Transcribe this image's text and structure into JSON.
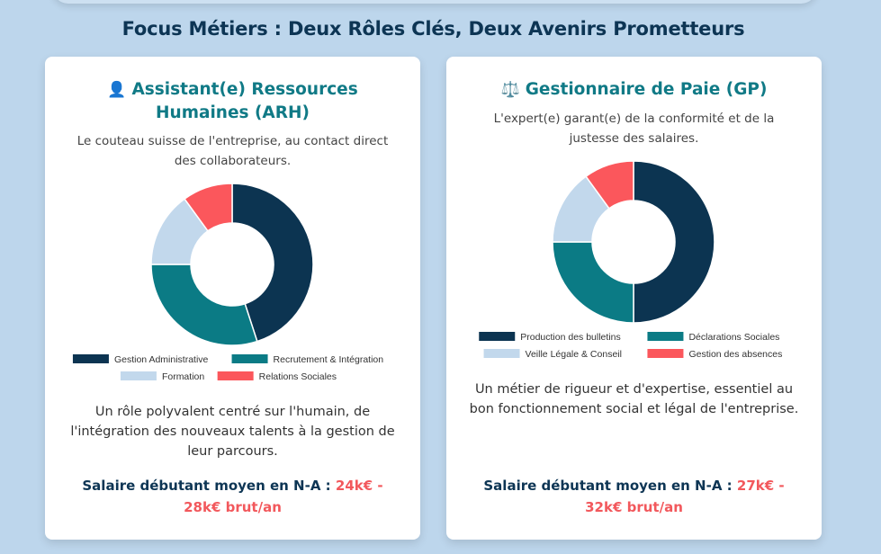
{
  "page_title": "Focus Métiers : Deux Rôles Clés, Deux Avenirs Prometteurs",
  "colors": {
    "dark_blue": "#0c3451",
    "teal": "#0b7b85",
    "light_blue": "#c2d8ec",
    "coral": "#fb575c",
    "title_teal": "#107a86",
    "salary_red": "#f2585c"
  },
  "cards": [
    {
      "icon": "person-icon",
      "icon_glyph": "👤",
      "title": "Assistant(e) Ressources Humaines (ARH)",
      "description": "Le couteau suisse de l'entreprise, au contact direct des collaborateurs.",
      "body": "Un rôle polyvalent centré sur l'humain, de l'intégration des nouveaux talents à la gestion de leur parcours.",
      "salary_label": "Salaire débutant moyen en N-A : ",
      "salary_value": "24k€ - 28k€ brut/an"
    },
    {
      "icon": "scales-icon",
      "icon_glyph": "⚖️",
      "title": "Gestionnaire de Paie (GP)",
      "description": "L'expert(e) garant(e) de la conformité et de la justesse des salaires.",
      "body": "Un métier de rigueur et d'expertise, essentiel au bon fonctionnement social et légal de l'entreprise.",
      "salary_label": "Salaire débutant moyen en N-A : ",
      "salary_value": "27k€ - 32k€ brut/an"
    }
  ],
  "chart_data": [
    {
      "type": "pie",
      "variant": "doughnut",
      "legend_position": "bottom",
      "categories": [
        "Gestion Administrative",
        "Recrutement & Intégration",
        "Formation",
        "Relations Sociales"
      ],
      "values": [
        45,
        30,
        15,
        10
      ],
      "colors": [
        "#0c3451",
        "#0b7b85",
        "#c2d8ec",
        "#fb575c"
      ]
    },
    {
      "type": "pie",
      "variant": "doughnut",
      "legend_position": "bottom",
      "categories": [
        "Production des bulletins",
        "Déclarations Sociales",
        "Veille Légale & Conseil",
        "Gestion des absences"
      ],
      "values": [
        50,
        25,
        15,
        10
      ],
      "colors": [
        "#0c3451",
        "#0b7b85",
        "#c2d8ec",
        "#fb575c"
      ]
    }
  ]
}
